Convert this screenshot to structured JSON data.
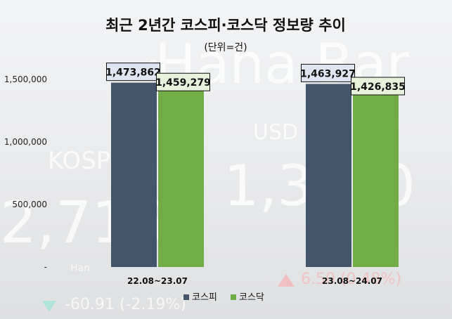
{
  "chart_data": {
    "type": "bar",
    "title": "최근 2년간 코스피·코스닥 정보량 추이",
    "subtitle": "(단위=건)",
    "categories": [
      "22.08~23.07",
      "23.08~24.07"
    ],
    "series": [
      {
        "name": "코스피",
        "values": [
          1473862,
          1463927
        ],
        "labels": [
          "1,473,862",
          "1,463,927"
        ],
        "color": "#44546a"
      },
      {
        "name": "코스닥",
        "values": [
          1459279,
          1426835
        ],
        "labels": [
          "1,459,279",
          "1,426,835"
        ],
        "color": "#70ad47"
      }
    ],
    "y_ticks": [
      {
        "value": 0,
        "label": "-"
      },
      {
        "value": 500000,
        "label": "500,000"
      },
      {
        "value": 1000000,
        "label": "1,000,000"
      },
      {
        "value": 1500000,
        "label": "1,500,000"
      }
    ],
    "ylim": [
      0,
      1500000
    ],
    "grid": false,
    "legend_position": "bottom"
  }
}
